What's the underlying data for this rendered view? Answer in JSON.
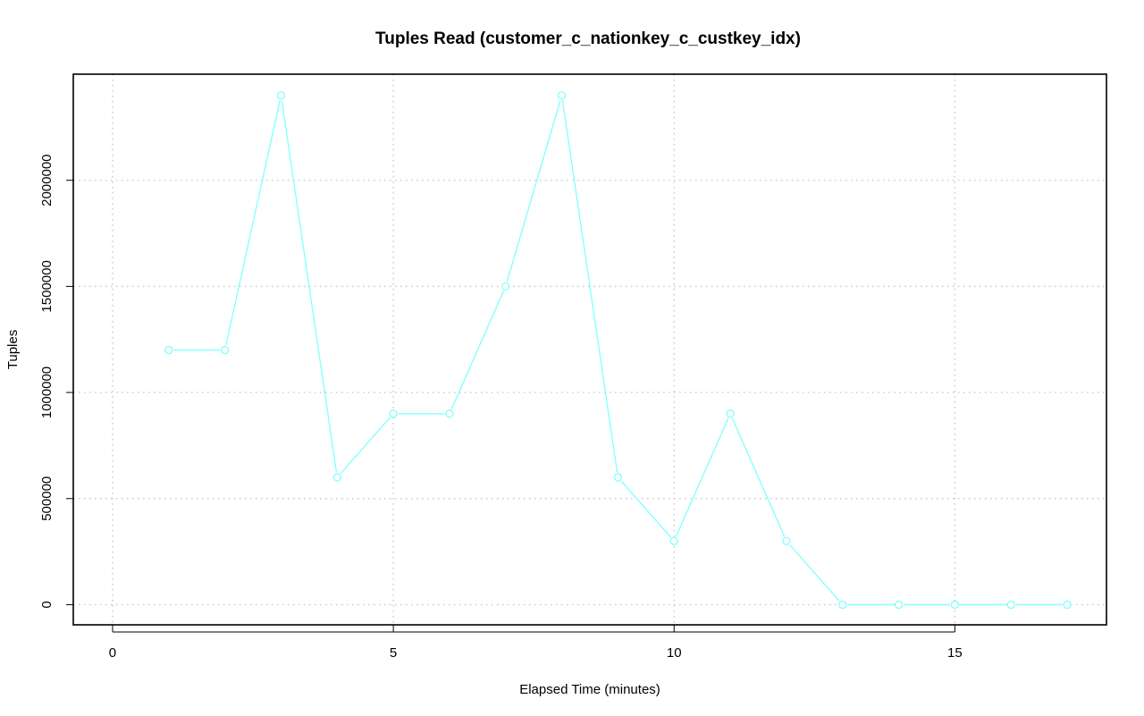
{
  "chart_data": {
    "type": "line",
    "title": "Tuples Read (customer_c_nationkey_c_custkey_idx)",
    "xlabel": "Elapsed Time (minutes)",
    "ylabel": "Tuples",
    "xlim": [
      -0.7,
      17.7
    ],
    "ylim": [
      -95000,
      2500000
    ],
    "x_ticks": [
      0,
      5,
      10,
      15
    ],
    "y_ticks": [
      0,
      500000,
      1000000,
      1500000,
      2000000
    ],
    "grid": true,
    "legend": "none",
    "series": [
      {
        "color": "#7fffff",
        "marker": "open-circle",
        "x": [
          1,
          2,
          3,
          4,
          5,
          6,
          7,
          8,
          9,
          10,
          11,
          12,
          13,
          14,
          15,
          16,
          17
        ],
        "values": [
          1200000,
          1200000,
          2400000,
          600000,
          900000,
          900000,
          1500000,
          2400000,
          600000,
          300000,
          900000,
          300000,
          0,
          0,
          0,
          0,
          0
        ]
      }
    ]
  }
}
